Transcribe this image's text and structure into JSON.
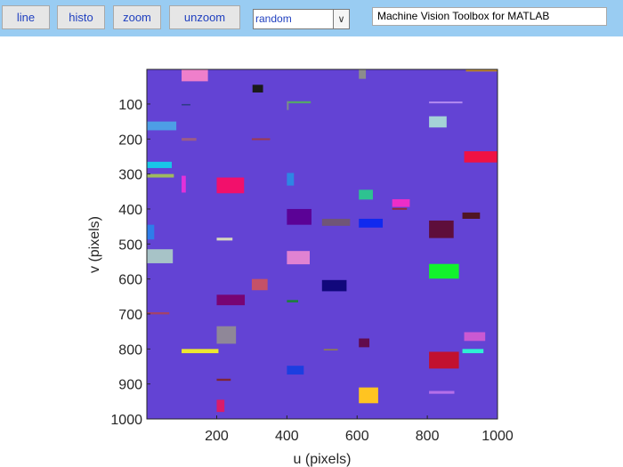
{
  "toolbar": {
    "buttons": [
      "line",
      "histo",
      "zoom",
      "unzoom"
    ],
    "select_value": "random",
    "title_text": "Machine Vision Toolbox for MATLAB"
  },
  "chart_data": {
    "type": "image",
    "xlabel": "u (pixels)",
    "ylabel": "v (pixels)",
    "xlim": [
      1,
      1000
    ],
    "ylim": [
      1,
      1000
    ],
    "y_reversed": true,
    "xticks": [
      200,
      400,
      600,
      800,
      1000
    ],
    "yticks": [
      100,
      200,
      300,
      400,
      500,
      600,
      700,
      800,
      900,
      1000
    ],
    "background_color": "#6343d4",
    "rects": [
      {
        "x": 100,
        "y": 0,
        "w": 75,
        "h": 35,
        "color": "#ef7fcb"
      },
      {
        "x": 605,
        "y": 0,
        "w": 20,
        "h": 28,
        "color": "#8c8c8c"
      },
      {
        "x": 910,
        "y": 0,
        "w": 90,
        "h": 7,
        "color": "#c0872c"
      },
      {
        "x": 302,
        "y": 45,
        "w": 30,
        "h": 22,
        "color": "#1a1a1a"
      },
      {
        "x": 400,
        "y": 92,
        "w": 68,
        "h": 6,
        "color": "#55a56a"
      },
      {
        "x": 400,
        "y": 92,
        "w": 5,
        "h": 25,
        "color": "#7e8b8b"
      },
      {
        "x": 805,
        "y": 93,
        "w": 95,
        "h": 5,
        "color": "#b58cf1"
      },
      {
        "x": 100,
        "y": 100,
        "w": 25,
        "h": 4,
        "color": "#2e3c87"
      },
      {
        "x": 805,
        "y": 135,
        "w": 50,
        "h": 32,
        "color": "#a5d2d7"
      },
      {
        "x": 0,
        "y": 150,
        "w": 85,
        "h": 25,
        "color": "#4d9ee6"
      },
      {
        "x": 100,
        "y": 197,
        "w": 42,
        "h": 8,
        "color": "#9b5c87"
      },
      {
        "x": 300,
        "y": 198,
        "w": 52,
        "h": 5,
        "color": "#9f3a4b"
      },
      {
        "x": 905,
        "y": 235,
        "w": 95,
        "h": 32,
        "color": "#ef1244"
      },
      {
        "x": 0,
        "y": 265,
        "w": 72,
        "h": 18,
        "color": "#19c6e8"
      },
      {
        "x": 0,
        "y": 300,
        "w": 78,
        "h": 10,
        "color": "#9fba5f"
      },
      {
        "x": 100,
        "y": 305,
        "w": 12,
        "h": 48,
        "color": "#e231da"
      },
      {
        "x": 200,
        "y": 310,
        "w": 78,
        "h": 45,
        "color": "#f2106b"
      },
      {
        "x": 400,
        "y": 297,
        "w": 20,
        "h": 36,
        "color": "#2e86e4"
      },
      {
        "x": 605,
        "y": 345,
        "w": 40,
        "h": 28,
        "color": "#2ec291"
      },
      {
        "x": 700,
        "y": 372,
        "w": 50,
        "h": 22,
        "color": "#ec2ec8"
      },
      {
        "x": 700,
        "y": 397,
        "w": 42,
        "h": 5,
        "color": "#962b34"
      },
      {
        "x": 400,
        "y": 400,
        "w": 70,
        "h": 45,
        "color": "#5b0296"
      },
      {
        "x": 500,
        "y": 428,
        "w": 80,
        "h": 20,
        "color": "#705577"
      },
      {
        "x": 605,
        "y": 428,
        "w": 68,
        "h": 25,
        "color": "#1029ef"
      },
      {
        "x": 805,
        "y": 433,
        "w": 70,
        "h": 50,
        "color": "#5e0e3b"
      },
      {
        "x": 900,
        "y": 410,
        "w": 50,
        "h": 18,
        "color": "#501524"
      },
      {
        "x": 0,
        "y": 445,
        "w": 22,
        "h": 42,
        "color": "#2e7dea"
      },
      {
        "x": 200,
        "y": 482,
        "w": 45,
        "h": 8,
        "color": "#d6d7bd"
      },
      {
        "x": 0,
        "y": 515,
        "w": 75,
        "h": 40,
        "color": "#a7c3c7"
      },
      {
        "x": 400,
        "y": 520,
        "w": 65,
        "h": 38,
        "color": "#e082d2"
      },
      {
        "x": 805,
        "y": 557,
        "w": 85,
        "h": 42,
        "color": "#12f22c"
      },
      {
        "x": 300,
        "y": 600,
        "w": 45,
        "h": 32,
        "color": "#c55167"
      },
      {
        "x": 500,
        "y": 603,
        "w": 70,
        "h": 32,
        "color": "#11087c"
      },
      {
        "x": 200,
        "y": 645,
        "w": 80,
        "h": 30,
        "color": "#780473"
      },
      {
        "x": 400,
        "y": 660,
        "w": 32,
        "h": 7,
        "color": "#1e7c40"
      },
      {
        "x": 0,
        "y": 695,
        "w": 65,
        "h": 6,
        "color": "#a3426a"
      },
      {
        "x": 200,
        "y": 735,
        "w": 55,
        "h": 50,
        "color": "#8f8798"
      },
      {
        "x": 605,
        "y": 770,
        "w": 30,
        "h": 25,
        "color": "#620b4d"
      },
      {
        "x": 905,
        "y": 752,
        "w": 60,
        "h": 25,
        "color": "#ca59d2"
      },
      {
        "x": 100,
        "y": 800,
        "w": 105,
        "h": 12,
        "color": "#ece630"
      },
      {
        "x": 505,
        "y": 800,
        "w": 40,
        "h": 4,
        "color": "#928049"
      },
      {
        "x": 900,
        "y": 800,
        "w": 60,
        "h": 12,
        "color": "#2ef0d4"
      },
      {
        "x": 805,
        "y": 808,
        "w": 85,
        "h": 48,
        "color": "#c2112f"
      },
      {
        "x": 400,
        "y": 848,
        "w": 48,
        "h": 25,
        "color": "#1c3ee0"
      },
      {
        "x": 200,
        "y": 885,
        "w": 40,
        "h": 6,
        "color": "#7e2537"
      },
      {
        "x": 605,
        "y": 910,
        "w": 55,
        "h": 45,
        "color": "#ffc421"
      },
      {
        "x": 805,
        "y": 920,
        "w": 72,
        "h": 8,
        "color": "#b56fe9"
      },
      {
        "x": 200,
        "y": 945,
        "w": 22,
        "h": 35,
        "color": "#da1c6a"
      }
    ]
  }
}
